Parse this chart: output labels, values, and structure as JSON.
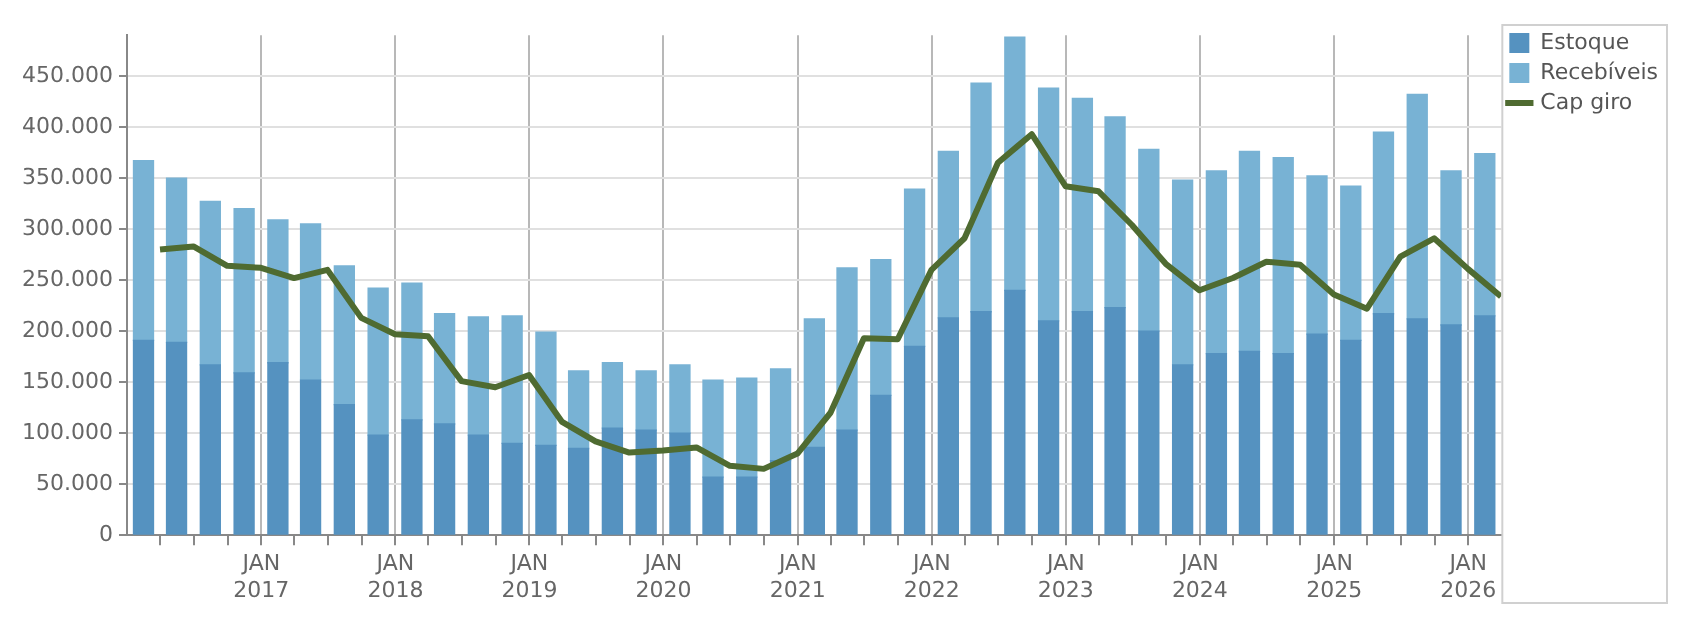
{
  "chart_data": {
    "type": "bar",
    "stacked": true,
    "x": [
      "2016-02-15",
      "2016-05-15",
      "2016-08-15",
      "2016-11-15",
      "2017-02-15",
      "2017-05-15",
      "2017-08-15",
      "2017-11-15",
      "2018-02-15",
      "2018-05-15",
      "2018-08-15",
      "2018-11-15",
      "2019-02-15",
      "2019-05-15",
      "2019-08-15",
      "2019-11-15",
      "2020-02-15",
      "2020-05-15",
      "2020-08-15",
      "2020-11-15",
      "2021-02-15",
      "2021-05-15",
      "2021-08-15",
      "2021-11-15",
      "2022-02-15",
      "2022-05-15",
      "2022-08-15",
      "2022-11-15",
      "2023-02-15",
      "2023-05-15",
      "2023-08-15",
      "2023-11-15",
      "2024-02-15",
      "2024-05-15",
      "2024-08-15",
      "2024-11-15",
      "2025-02-15",
      "2025-05-15",
      "2025-08-15",
      "2025-11-15",
      "2026-02-15"
    ],
    "series": [
      {
        "name": "Estoque",
        "color": "#5592c0",
        "values": [
          191000,
          189000,
          167000,
          159000,
          169000,
          152000,
          128000,
          98000,
          113000,
          109000,
          98000,
          90000,
          88000,
          85000,
          105000,
          103000,
          100000,
          57000,
          57000,
          73000,
          86000,
          103000,
          137000,
          185000,
          213000,
          219000,
          240000,
          210000,
          219000,
          223000,
          200000,
          167000,
          178000,
          180000,
          178000,
          197000,
          191000,
          217000,
          212000,
          206000,
          215000
        ]
      },
      {
        "name": "Recebíveis",
        "color": "#78b2d4",
        "values": [
          176000,
          161000,
          160000,
          161000,
          140000,
          153000,
          136000,
          144000,
          134000,
          108000,
          116000,
          125000,
          111000,
          76000,
          64000,
          58000,
          67000,
          95000,
          97000,
          90000,
          126000,
          159000,
          133000,
          154000,
          163000,
          224000,
          248000,
          228000,
          209000,
          187000,
          178000,
          181000,
          179000,
          196000,
          192000,
          155000,
          151000,
          178000,
          220000,
          151000,
          159000
        ]
      },
      {
        "name": "Cap giro",
        "type": "line",
        "color": "#4f6b31",
        "line_style": "solid",
        "marker": "none",
        "x": [
          "2016-03-31",
          "2016-06-30",
          "2016-09-30",
          "2016-12-31",
          "2017-03-31",
          "2017-06-30",
          "2017-09-30",
          "2017-12-31",
          "2018-03-31",
          "2018-06-30",
          "2018-09-30",
          "2018-12-31",
          "2019-03-31",
          "2019-06-30",
          "2019-09-30",
          "2019-12-31",
          "2020-03-31",
          "2020-06-30",
          "2020-09-30",
          "2020-12-31",
          "2021-03-31",
          "2021-06-30",
          "2021-09-30",
          "2021-12-31",
          "2022-03-31",
          "2022-06-30",
          "2022-09-30",
          "2022-12-31",
          "2023-03-31",
          "2023-06-30",
          "2023-09-30",
          "2023-12-31",
          "2024-03-31",
          "2024-06-30",
          "2024-09-30",
          "2024-12-31",
          "2025-03-31",
          "2025-06-30",
          "2025-09-30",
          "2025-12-31",
          "2026-03-31"
        ],
        "values": [
          280000,
          283000,
          264000,
          262000,
          252000,
          260000,
          213000,
          197000,
          195000,
          151000,
          145000,
          157000,
          111000,
          92000,
          81000,
          83000,
          86000,
          68000,
          65000,
          80000,
          120000,
          193000,
          192000,
          260000,
          291000,
          365000,
          393000,
          342000,
          337000,
          304000,
          266000,
          240000,
          252000,
          268000,
          265000,
          236000,
          222000,
          273000,
          291000,
          261000,
          234000
        ]
      }
    ],
    "xlim": [
      "2016-01-01",
      "2026-04-01"
    ],
    "xticks": [
      {
        "value": "2016-04-01",
        "label": null
      },
      {
        "value": "2016-07-01",
        "label": null
      },
      {
        "value": "2016-10-01",
        "label": null
      },
      {
        "value": "2017-01-01",
        "label": "JAN 2017"
      },
      {
        "value": "2017-04-01",
        "label": null
      },
      {
        "value": "2017-07-01",
        "label": null
      },
      {
        "value": "2017-10-01",
        "label": null
      },
      {
        "value": "2018-01-01",
        "label": "JAN 2018"
      },
      {
        "value": "2018-04-01",
        "label": null
      },
      {
        "value": "2018-07-01",
        "label": null
      },
      {
        "value": "2018-10-01",
        "label": null
      },
      {
        "value": "2019-01-01",
        "label": "JAN 2019"
      },
      {
        "value": "2019-04-01",
        "label": null
      },
      {
        "value": "2019-07-01",
        "label": null
      },
      {
        "value": "2019-10-01",
        "label": null
      },
      {
        "value": "2020-01-01",
        "label": "JAN 2020"
      },
      {
        "value": "2020-04-01",
        "label": null
      },
      {
        "value": "2020-07-01",
        "label": null
      },
      {
        "value": "2020-10-01",
        "label": null
      },
      {
        "value": "2021-01-01",
        "label": "JAN 2021"
      },
      {
        "value": "2021-04-01",
        "label": null
      },
      {
        "value": "2021-07-01",
        "label": null
      },
      {
        "value": "2021-10-01",
        "label": null
      },
      {
        "value": "2022-01-01",
        "label": "JAN 2022"
      },
      {
        "value": "2022-04-01",
        "label": null
      },
      {
        "value": "2022-07-01",
        "label": null
      },
      {
        "value": "2022-10-01",
        "label": null
      },
      {
        "value": "2023-01-01",
        "label": "JAN 2023"
      },
      {
        "value": "2023-04-01",
        "label": null
      },
      {
        "value": "2023-07-01",
        "label": null
      },
      {
        "value": "2023-10-01",
        "label": null
      },
      {
        "value": "2024-01-01",
        "label": "JAN 2024"
      },
      {
        "value": "2024-04-01",
        "label": null
      },
      {
        "value": "2024-07-01",
        "label": null
      },
      {
        "value": "2024-10-01",
        "label": null
      },
      {
        "value": "2025-01-01",
        "label": "JAN 2025"
      },
      {
        "value": "2025-04-01",
        "label": null
      },
      {
        "value": "2025-07-01",
        "label": null
      },
      {
        "value": "2025-10-01",
        "label": null
      },
      {
        "value": "2026-01-01",
        "label": "JAN 2026"
      }
    ],
    "ylim": [
      0,
      490000
    ],
    "yticks": [
      0,
      {
        "value": 50000,
        "label": "50.000"
      },
      {
        "value": 100000,
        "label": "100.000"
      },
      {
        "value": 150000,
        "label": "150.000"
      },
      {
        "value": 200000,
        "label": "200.000"
      },
      {
        "value": 250000,
        "label": "250.000"
      },
      {
        "value": 300000,
        "label": "300.000"
      },
      {
        "value": 350000,
        "label": "350.000"
      },
      {
        "value": 400000,
        "label": "400.000"
      },
      {
        "value": 450000,
        "label": "450.000"
      }
    ],
    "grid": true,
    "legend": "top right"
  }
}
